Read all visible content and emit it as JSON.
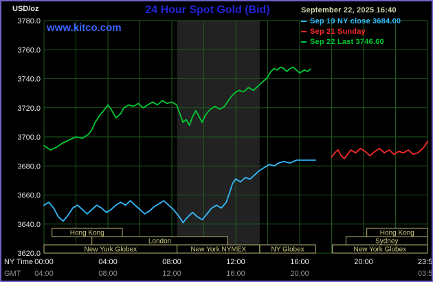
{
  "header": {
    "units_label": "USD/oz",
    "title": "24 Hour Spot Gold (Bid)",
    "datetime": "September 22, 2025 16:40",
    "watermark": "www.kitco.com",
    "legend": [
      {
        "label": "Sep 19 NY close 3684.00",
        "color": "#33bbff"
      },
      {
        "label": "Sep 21 Sunday",
        "color": "#ff2b2b"
      },
      {
        "label": "Sep 22 Last 3746.60",
        "color": "#00cc33"
      }
    ]
  },
  "axes": {
    "x_row1_label": "NY Time",
    "x_row2_label": "GMT",
    "y_ticks": [
      "3780.0",
      "3760.0",
      "3740.0",
      "3720.0",
      "3700.0",
      "3680.0",
      "3660.0",
      "3640.0",
      "3620.0"
    ],
    "x_ticks": [
      {
        "t": 0,
        "ny": "00:00",
        "gmt": "04:00"
      },
      {
        "t": 4,
        "ny": "04:00",
        "gmt": "08:00"
      },
      {
        "t": 8,
        "ny": "08:00",
        "gmt": "12:00"
      },
      {
        "t": 12,
        "ny": "12:00",
        "gmt": "16:00"
      },
      {
        "t": 16,
        "ny": "16:00",
        "gmt": "20:00"
      },
      {
        "t": 20,
        "ny": "20:00",
        "gmt": ""
      },
      {
        "t": 23.983,
        "ny": "23:59",
        "gmt": "03:59"
      }
    ]
  },
  "chart_data": {
    "type": "line",
    "title": "24 Hour Spot Gold (Bid)",
    "xlabel": "NY Time (hours)",
    "ylabel": "USD/oz",
    "xlim": [
      0,
      24
    ],
    "ylim": [
      3620,
      3780
    ],
    "grid": true,
    "legend_position": "top-right",
    "nymex_band": {
      "start": 8.33,
      "end": 13.5
    },
    "series": [
      {
        "id": "sep19",
        "name": "Sep 19 NY close 3684.00",
        "color": "#33bbff",
        "points": [
          [
            0,
            3653
          ],
          [
            0.3,
            3655
          ],
          [
            0.6,
            3651
          ],
          [
            0.9,
            3645
          ],
          [
            1.2,
            3642
          ],
          [
            1.5,
            3646
          ],
          [
            1.8,
            3651
          ],
          [
            2.1,
            3653
          ],
          [
            2.4,
            3650
          ],
          [
            2.7,
            3647
          ],
          [
            3.0,
            3650
          ],
          [
            3.3,
            3653
          ],
          [
            3.6,
            3651
          ],
          [
            3.9,
            3648
          ],
          [
            4.2,
            3650
          ],
          [
            4.5,
            3653
          ],
          [
            4.8,
            3655
          ],
          [
            5.1,
            3653
          ],
          [
            5.4,
            3656
          ],
          [
            5.7,
            3653
          ],
          [
            6.0,
            3650
          ],
          [
            6.3,
            3647
          ],
          [
            6.6,
            3649
          ],
          [
            6.9,
            3652
          ],
          [
            7.2,
            3654
          ],
          [
            7.5,
            3656
          ],
          [
            7.8,
            3653
          ],
          [
            8.1,
            3650
          ],
          [
            8.4,
            3646
          ],
          [
            8.7,
            3641
          ],
          [
            9.0,
            3645
          ],
          [
            9.3,
            3648
          ],
          [
            9.6,
            3645
          ],
          [
            9.9,
            3643
          ],
          [
            10.2,
            3647
          ],
          [
            10.5,
            3651
          ],
          [
            10.8,
            3653
          ],
          [
            11.1,
            3651
          ],
          [
            11.4,
            3655
          ],
          [
            11.6,
            3661
          ],
          [
            11.8,
            3668
          ],
          [
            12.0,
            3671
          ],
          [
            12.3,
            3669
          ],
          [
            12.6,
            3672
          ],
          [
            12.9,
            3671
          ],
          [
            13.2,
            3674
          ],
          [
            13.5,
            3677
          ],
          [
            13.8,
            3679
          ],
          [
            14.1,
            3681
          ],
          [
            14.4,
            3680
          ],
          [
            14.7,
            3682
          ],
          [
            15.0,
            3683
          ],
          [
            15.4,
            3682
          ],
          [
            15.8,
            3684
          ],
          [
            16.2,
            3684
          ],
          [
            16.6,
            3684
          ],
          [
            17.0,
            3684
          ]
        ]
      },
      {
        "id": "sep21",
        "name": "Sep 21 Sunday",
        "color": "#ff2b2b",
        "points": [
          [
            18.0,
            3686
          ],
          [
            18.2,
            3689
          ],
          [
            18.4,
            3691
          ],
          [
            18.6,
            3687
          ],
          [
            18.8,
            3685
          ],
          [
            19.0,
            3688
          ],
          [
            19.2,
            3691
          ],
          [
            19.5,
            3689
          ],
          [
            19.8,
            3692
          ],
          [
            20.1,
            3690
          ],
          [
            20.4,
            3687
          ],
          [
            20.7,
            3690
          ],
          [
            21.0,
            3692
          ],
          [
            21.3,
            3689
          ],
          [
            21.6,
            3691
          ],
          [
            21.9,
            3688
          ],
          [
            22.2,
            3690
          ],
          [
            22.5,
            3689
          ],
          [
            22.8,
            3691
          ],
          [
            23.1,
            3688
          ],
          [
            23.4,
            3689
          ],
          [
            23.7,
            3692
          ],
          [
            23.85,
            3694
          ],
          [
            24.0,
            3697
          ]
        ]
      },
      {
        "id": "sep22",
        "name": "Sep 22 Last 3746.60",
        "color": "#00cc33",
        "points": [
          [
            0,
            3694
          ],
          [
            0.4,
            3691
          ],
          [
            0.8,
            3693
          ],
          [
            1.2,
            3696
          ],
          [
            1.6,
            3698
          ],
          [
            2.0,
            3700
          ],
          [
            2.4,
            3699
          ],
          [
            2.8,
            3702
          ],
          [
            3.0,
            3705
          ],
          [
            3.2,
            3710
          ],
          [
            3.5,
            3715
          ],
          [
            3.8,
            3719
          ],
          [
            4.0,
            3722
          ],
          [
            4.2,
            3719
          ],
          [
            4.5,
            3713
          ],
          [
            4.8,
            3716
          ],
          [
            5.0,
            3720
          ],
          [
            5.3,
            3722
          ],
          [
            5.6,
            3721
          ],
          [
            5.9,
            3723
          ],
          [
            6.2,
            3720
          ],
          [
            6.5,
            3722
          ],
          [
            6.8,
            3724
          ],
          [
            7.1,
            3722
          ],
          [
            7.4,
            3725
          ],
          [
            7.7,
            3723
          ],
          [
            8.0,
            3724
          ],
          [
            8.3,
            3722
          ],
          [
            8.5,
            3716
          ],
          [
            8.7,
            3710
          ],
          [
            8.9,
            3712
          ],
          [
            9.1,
            3708
          ],
          [
            9.3,
            3714
          ],
          [
            9.5,
            3718
          ],
          [
            9.7,
            3714
          ],
          [
            9.9,
            3710
          ],
          [
            10.1,
            3715
          ],
          [
            10.4,
            3719
          ],
          [
            10.7,
            3721
          ],
          [
            11.0,
            3719
          ],
          [
            11.3,
            3721
          ],
          [
            11.6,
            3726
          ],
          [
            11.9,
            3730
          ],
          [
            12.2,
            3732
          ],
          [
            12.5,
            3731
          ],
          [
            12.8,
            3734
          ],
          [
            13.1,
            3732
          ],
          [
            13.4,
            3735
          ],
          [
            13.7,
            3738
          ],
          [
            14.0,
            3741
          ],
          [
            14.2,
            3745
          ],
          [
            14.4,
            3747
          ],
          [
            14.6,
            3746
          ],
          [
            14.8,
            3748
          ],
          [
            15.0,
            3747
          ],
          [
            15.2,
            3745
          ],
          [
            15.4,
            3747
          ],
          [
            15.6,
            3748
          ],
          [
            15.8,
            3746
          ],
          [
            16.0,
            3744
          ],
          [
            16.3,
            3746
          ],
          [
            16.5,
            3745
          ],
          [
            16.67,
            3746.6
          ]
        ]
      }
    ]
  },
  "sessions": {
    "rows": [
      [
        {
          "label": "Hong Kong",
          "start": 0.5,
          "end": 4.9
        },
        {
          "label": "Hong Kong",
          "start": 20.2,
          "end": 24
        }
      ],
      [
        {
          "label": "London",
          "start": 3.0,
          "end": 11.5
        },
        {
          "label": "Sydney",
          "start": 18.9,
          "end": 24
        }
      ],
      [
        {
          "label": "New York Globex",
          "start": 0,
          "end": 8.33
        },
        {
          "label": "New York NYMEX",
          "start": 8.33,
          "end": 13.5
        },
        {
          "label": "NY Globex",
          "start": 13.5,
          "end": 17.0
        },
        {
          "label": "New York Globex",
          "start": 18.05,
          "end": 24
        }
      ]
    ]
  },
  "colors": {
    "background": "#000000",
    "frame": "#6f63cc",
    "grid": "#1e5b1e",
    "band": "#222222",
    "title": "#2323d6",
    "watermark": "#3a66ff",
    "datetime_text": "#d6d6b0",
    "axis_text": "#e8e8e8",
    "axis_text_dim": "#8f8f8f",
    "session_border": "#b9b878",
    "session_text": "#cdcc82"
  }
}
